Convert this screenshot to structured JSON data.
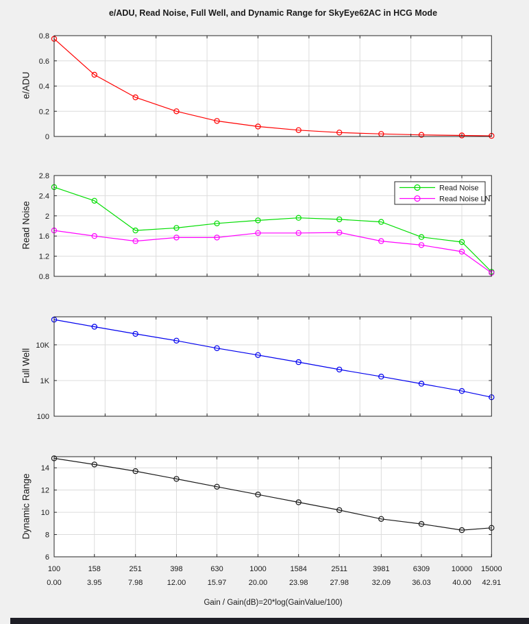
{
  "title": "e/ADU, Read Noise, Full Well, and Dynamic Range for SkyEye62AC in HCG Mode",
  "xlabel": "Gain / Gain(dB)=20*log(GainValue/100)",
  "x_gain_labels": [
    "100",
    "158",
    "251",
    "398",
    "630",
    "1000",
    "1584",
    "2511",
    "3981",
    "6309",
    "10000",
    "15000"
  ],
  "x_db_labels": [
    "0.00",
    "3.95",
    "7.98",
    "12.00",
    "15.97",
    "20.00",
    "23.98",
    "27.98",
    "32.09",
    "36.03",
    "40.00",
    "42.91"
  ],
  "x_gain_values": [
    100,
    158,
    251,
    398,
    630,
    1000,
    1584,
    2511,
    3981,
    6309,
    10000,
    15000
  ],
  "x_db_values": [
    0,
    3.95,
    7.98,
    12,
    15.97,
    20,
    23.98,
    27.98,
    32.09,
    36.03,
    40,
    42.91
  ],
  "colors": {
    "figure_bg": "#f0f0f0",
    "plot_bg": "#ffffff",
    "grid": "#dcdcdc",
    "axis": "#262626",
    "text": "#1a1a1a",
    "eadu_line": "#ff0000",
    "read_noise_line": "#00dd00",
    "read_noise_ln_line": "#ff00ff",
    "full_well_line": "#0000ee",
    "dynamic_range_line": "#1a1a1a"
  },
  "chart_data": [
    {
      "id": "e-adu",
      "type": "line",
      "ylabel": "e/ADU",
      "yscale": "linear",
      "ylim": [
        0,
        0.8
      ],
      "yticks": [
        0,
        0.2,
        0.4,
        0.6,
        0.8
      ],
      "grid": true,
      "xticks": "db5",
      "x_mode": "linear_in_dB",
      "xlim_db": [
        0,
        42.91
      ],
      "series": [
        {
          "name": "e/ADU",
          "color": "#ff0000",
          "marker": "o",
          "values": [
            0.775,
            0.49,
            0.31,
            0.2,
            0.123,
            0.079,
            0.05,
            0.031,
            0.02,
            0.0124,
            0.008,
            0.005
          ]
        }
      ]
    },
    {
      "id": "read-noise",
      "type": "line",
      "ylabel": "Read Noise",
      "yscale": "linear",
      "ylim": [
        0.8,
        2.8
      ],
      "yticks": [
        0.8,
        1.2,
        1.6,
        2,
        2.4,
        2.8
      ],
      "grid": true,
      "xticks": "db5",
      "x_mode": "linear_in_dB",
      "xlim_db": [
        0,
        42.91
      ],
      "legend": {
        "position": "top-right",
        "entries": [
          "Read Noise",
          "Read Noise LN"
        ]
      },
      "series": [
        {
          "name": "Read Noise",
          "color": "#00dd00",
          "marker": "o",
          "values": [
            2.57,
            2.3,
            1.71,
            1.76,
            1.85,
            1.91,
            1.96,
            1.93,
            1.88,
            1.58,
            1.48,
            0.89
          ]
        },
        {
          "name": "Read Noise LN",
          "color": "#ff00ff",
          "marker": "o",
          "values": [
            1.71,
            1.6,
            1.5,
            1.57,
            1.57,
            1.66,
            1.66,
            1.67,
            1.5,
            1.42,
            1.29,
            0.87
          ]
        }
      ]
    },
    {
      "id": "full-well",
      "type": "line",
      "ylabel": "Full Well",
      "yscale": "log",
      "ylim": [
        100,
        61000
      ],
      "yticks": [
        100,
        1000,
        10000
      ],
      "ytick_labels": [
        "100",
        "1K",
        "10K"
      ],
      "grid": true,
      "xticks": "db5",
      "x_mode": "linear_in_dB",
      "xlim_db": [
        0,
        42.91
      ],
      "series": [
        {
          "name": "Full Well",
          "color": "#0000ee",
          "marker": "o",
          "values": [
            50800,
            32100,
            20300,
            13100,
            8060,
            5180,
            3280,
            2030,
            1290,
            815,
            510,
            340
          ]
        }
      ]
    },
    {
      "id": "dynamic-range",
      "type": "line",
      "ylabel": "Dynamic Range",
      "yscale": "linear",
      "ylim": [
        6,
        15
      ],
      "yticks": [
        6,
        8,
        10,
        12,
        14
      ],
      "grid": true,
      "xticks": "gains",
      "x_mode": "linear_in_dB",
      "xlim_db": [
        0,
        42.91
      ],
      "series": [
        {
          "name": "Dynamic Range",
          "color": "#1a1a1a",
          "marker": "o",
          "values": [
            14.85,
            14.3,
            13.7,
            13.0,
            12.3,
            11.6,
            10.9,
            10.2,
            9.4,
            8.95,
            8.4,
            8.6
          ]
        }
      ]
    }
  ]
}
